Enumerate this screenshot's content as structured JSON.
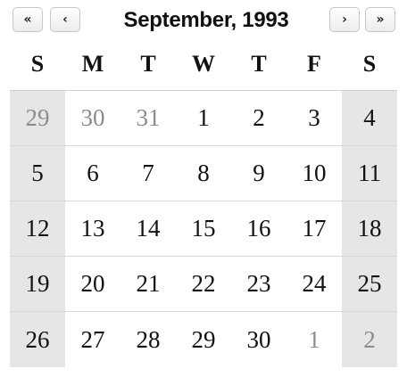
{
  "calendar": {
    "title": "September, 1993",
    "nav": {
      "prev_year": "«",
      "prev_month": "‹",
      "next_month": "›",
      "next_year": "»"
    },
    "weekdays": [
      "S",
      "M",
      "T",
      "W",
      "T",
      "F",
      "S"
    ],
    "weeks": [
      [
        {
          "label": "29",
          "current": false
        },
        {
          "label": "30",
          "current": false
        },
        {
          "label": "31",
          "current": false
        },
        {
          "label": "1",
          "current": true
        },
        {
          "label": "2",
          "current": true
        },
        {
          "label": "3",
          "current": true
        },
        {
          "label": "4",
          "current": true
        }
      ],
      [
        {
          "label": "5",
          "current": true
        },
        {
          "label": "6",
          "current": true
        },
        {
          "label": "7",
          "current": true
        },
        {
          "label": "8",
          "current": true
        },
        {
          "label": "9",
          "current": true
        },
        {
          "label": "10",
          "current": true
        },
        {
          "label": "11",
          "current": true
        }
      ],
      [
        {
          "label": "12",
          "current": true
        },
        {
          "label": "13",
          "current": true
        },
        {
          "label": "14",
          "current": true
        },
        {
          "label": "15",
          "current": true
        },
        {
          "label": "16",
          "current": true
        },
        {
          "label": "17",
          "current": true
        },
        {
          "label": "18",
          "current": true
        }
      ],
      [
        {
          "label": "19",
          "current": true
        },
        {
          "label": "20",
          "current": true
        },
        {
          "label": "21",
          "current": true
        },
        {
          "label": "22",
          "current": true
        },
        {
          "label": "23",
          "current": true
        },
        {
          "label": "24",
          "current": true
        },
        {
          "label": "25",
          "current": true
        }
      ],
      [
        {
          "label": "26",
          "current": true
        },
        {
          "label": "27",
          "current": true
        },
        {
          "label": "28",
          "current": true
        },
        {
          "label": "29",
          "current": true
        },
        {
          "label": "30",
          "current": true
        },
        {
          "label": "1",
          "current": false
        },
        {
          "label": "2",
          "current": false
        }
      ]
    ]
  },
  "colors": {
    "weekend_bg": "#e6e6e6",
    "other_month_text": "#8c8c8c",
    "text": "#111111"
  }
}
